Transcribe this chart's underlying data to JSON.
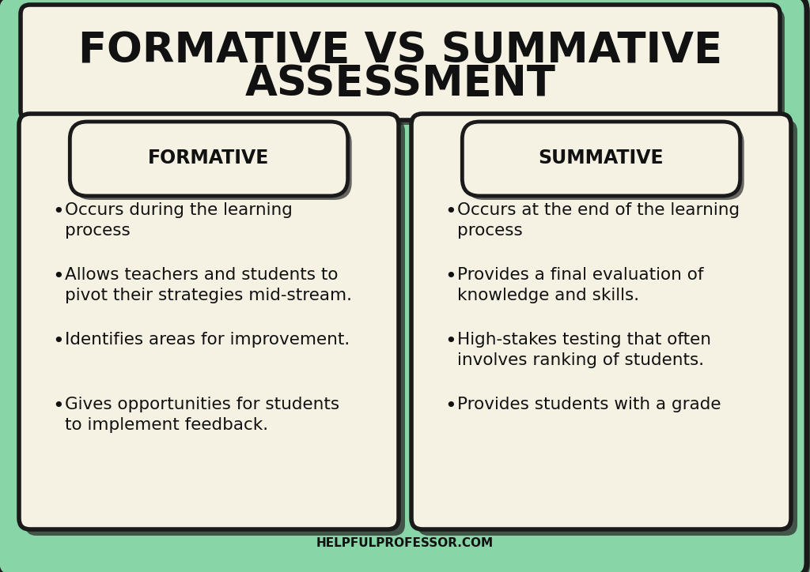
{
  "title_line1": "FORMATIVE VS SUMMATIVE",
  "title_line2": "ASSESSMENT",
  "bg_color": "#88d5a8",
  "outer_border_color": "#1a1a1a",
  "card_bg": "#f5f2e3",
  "text_color": "#1a1a1a",
  "shadow_color": "#2a2a2a",
  "left_header": "FORMATIVE",
  "right_header": "SUMMATIVE",
  "left_bullets": [
    "Occurs during the learning\nprocess",
    "Allows teachers and students to\npivot their strategies mid-stream.",
    "Identifies areas for improvement.",
    "Gives opportunities for students\nto implement feedback."
  ],
  "right_bullets": [
    "Occurs at the end of the learning\nprocess",
    "Provides a final evaluation of\nknowledge and skills.",
    "High-stakes testing that often\ninvolves ranking of students.",
    "Provides students with a grade"
  ],
  "footer": "HELPFULPROFESSOR.COM"
}
